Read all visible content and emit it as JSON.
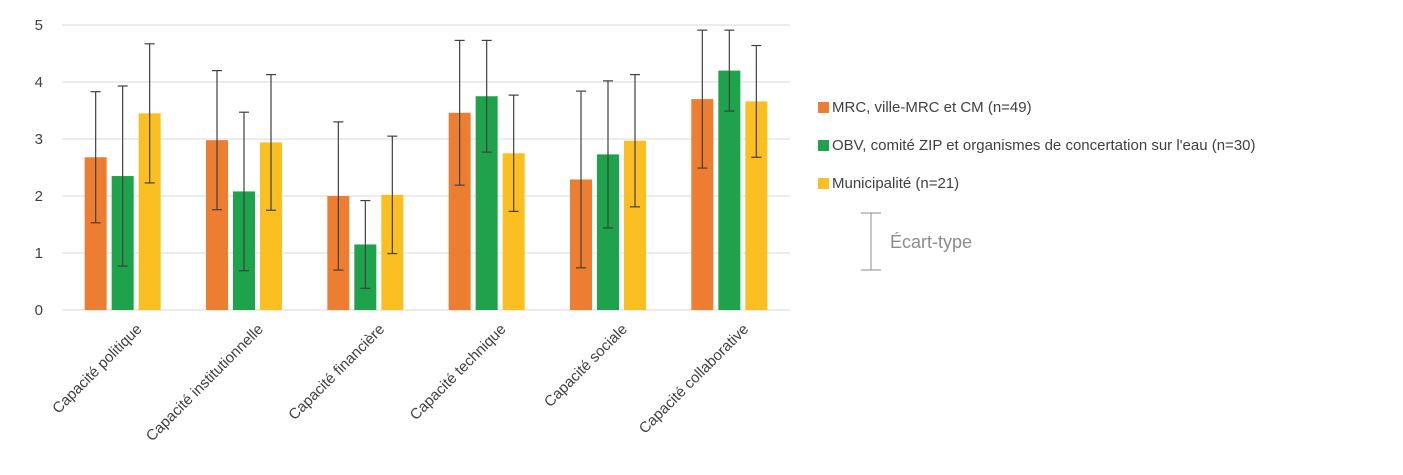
{
  "chart_data": {
    "type": "bar",
    "categories": [
      "Capacité politique",
      "Capacité institutionnelle",
      "Capacité financière",
      "Capacité technique",
      "Capacité sociale",
      "Capacité collaborative"
    ],
    "series": [
      {
        "name": "MRC, ville-MRC et CM (n=49)",
        "color": "#ED7D31",
        "values": [
          2.68,
          2.98,
          2.0,
          3.46,
          2.29,
          3.7
        ],
        "error": [
          1.15,
          1.22,
          1.3,
          1.27,
          1.55,
          1.21
        ]
      },
      {
        "name": "OBV, comité ZIP et organismes de concertation sur l'eau (n=30)",
        "color": "#1EA24B",
        "values": [
          2.35,
          2.08,
          1.15,
          3.75,
          2.73,
          4.2
        ],
        "error": [
          1.58,
          1.39,
          0.77,
          0.98,
          1.29,
          0.71
        ]
      },
      {
        "name": "Municipalité (n=21)",
        "color": "#FBBF22",
        "values": [
          3.45,
          2.94,
          2.02,
          2.75,
          2.97,
          3.66
        ],
        "error": [
          1.22,
          1.19,
          1.03,
          1.02,
          1.16,
          0.98
        ]
      }
    ],
    "yticks": [
      "0",
      "1",
      "2",
      "3",
      "4",
      "5"
    ],
    "ylim": [
      0,
      5
    ],
    "grid": true,
    "error_bar_legend": "Écart-type",
    "legend_position": "right"
  }
}
